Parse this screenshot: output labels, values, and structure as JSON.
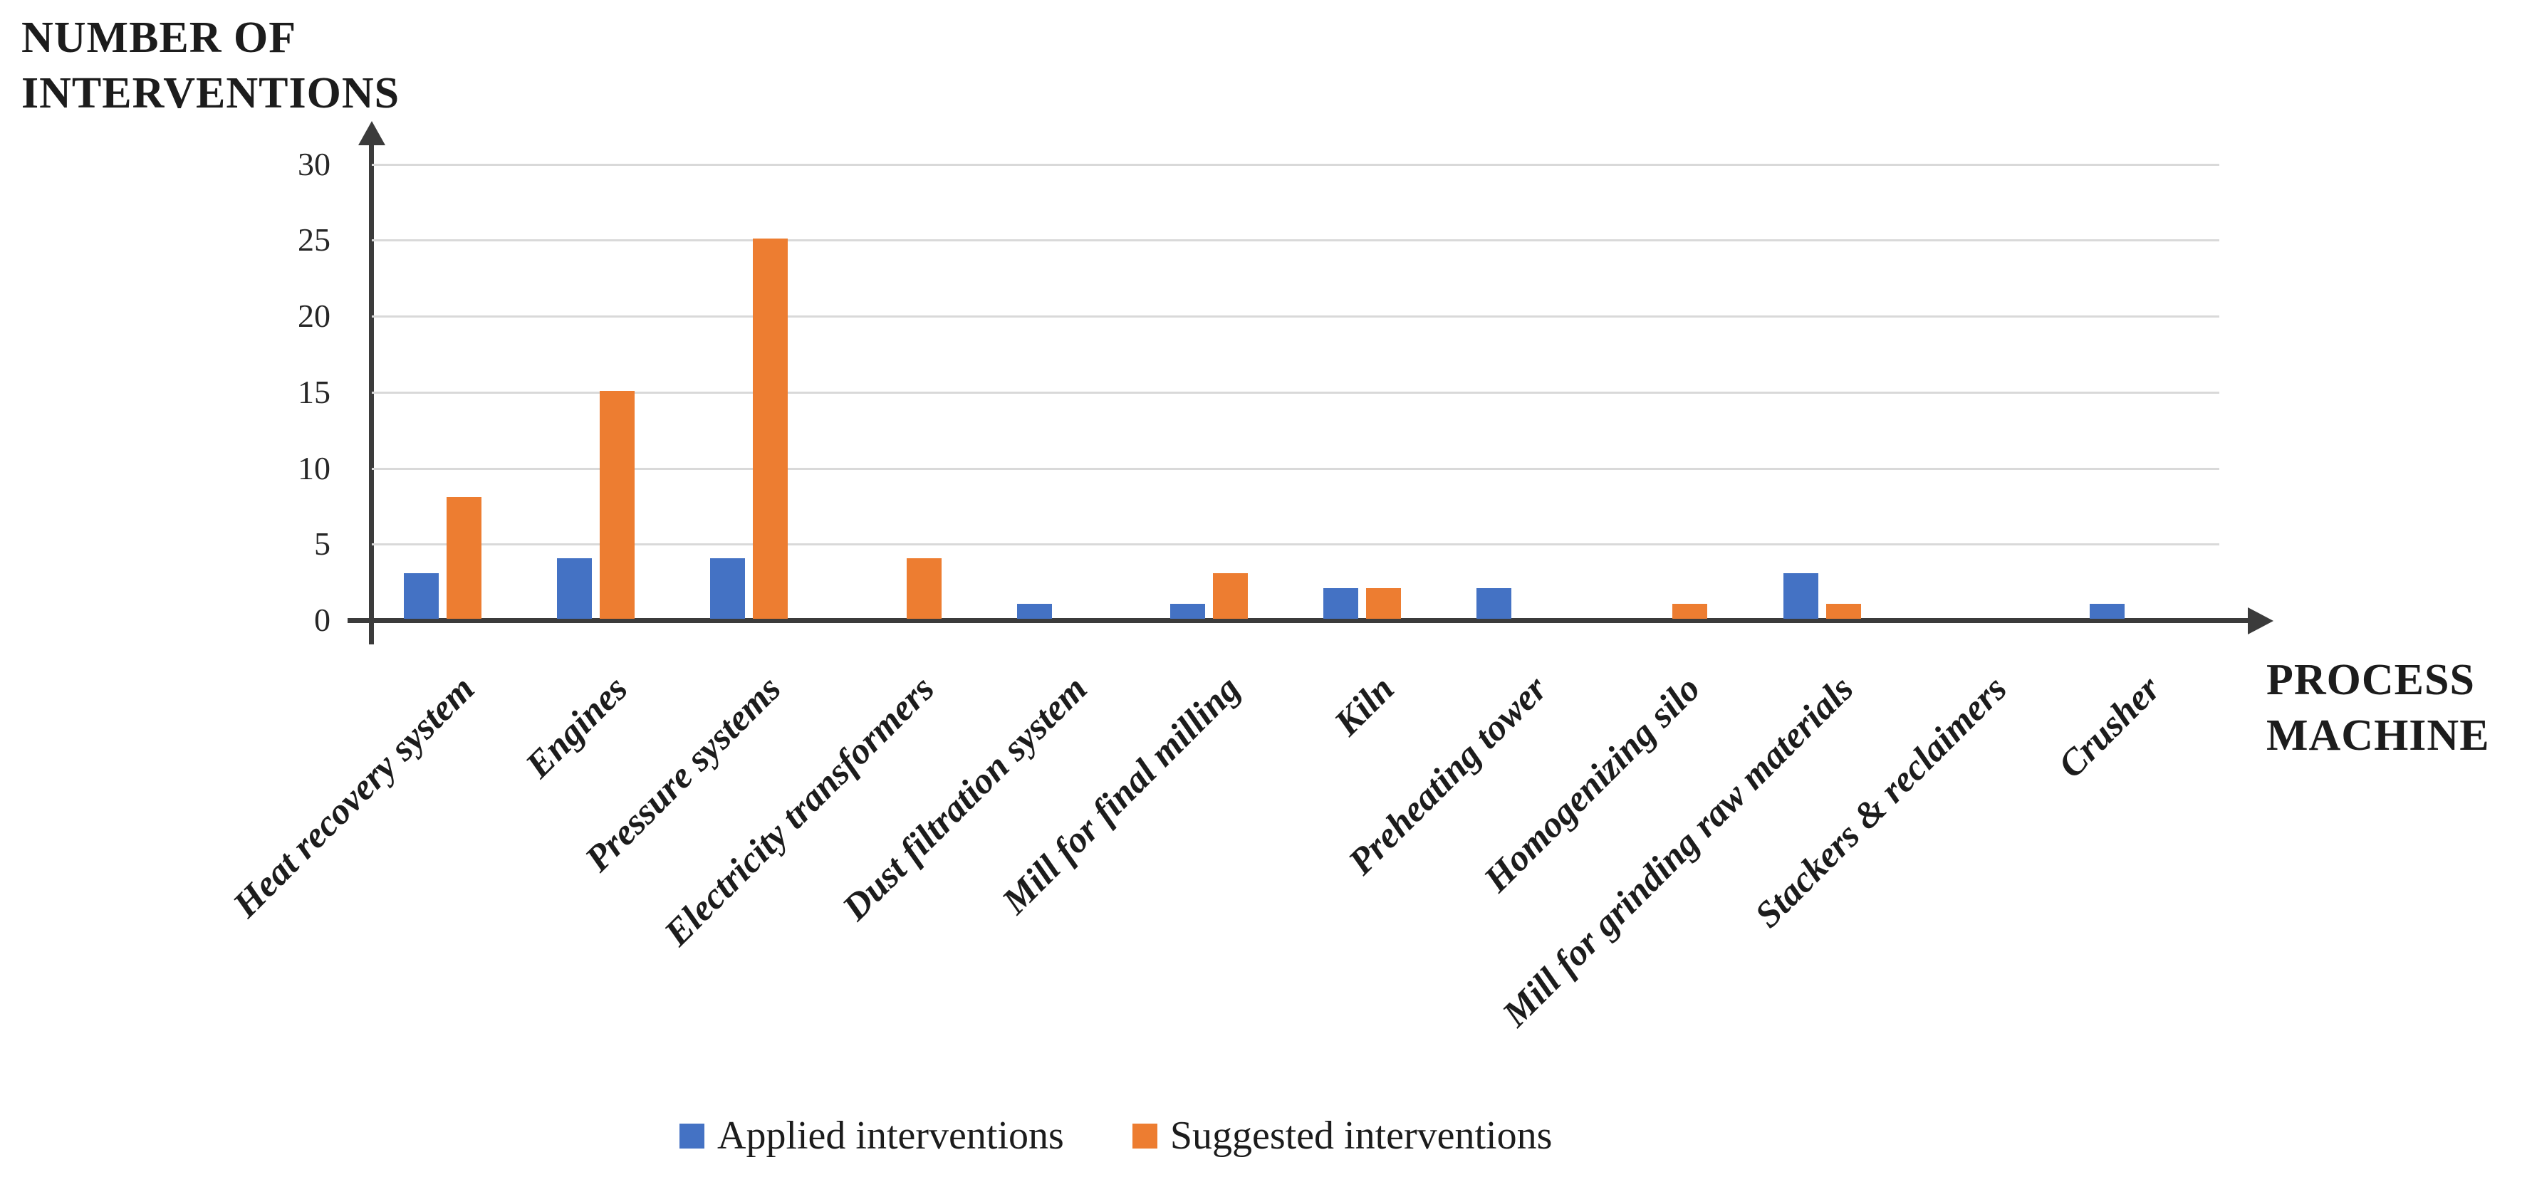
{
  "chart_data": {
    "type": "bar",
    "title": "",
    "y_axis_title": "NUMBER OF INTERVENTIONS",
    "x_axis_title": "PROCESS MACHINE",
    "categories": [
      "Heat recovery system",
      "Engines",
      "Pressure systems",
      "Electricity transformers",
      "Dust filtration system",
      "Mill for final milling",
      "Kiln",
      "Preheating tower",
      "Homogenizing silo",
      "Mill for grinding raw materials",
      "Stackers & reclaimers",
      "Crusher"
    ],
    "series": [
      {
        "name": "Applied interventions",
        "color": "#4472C4",
        "values": [
          3,
          4,
          4,
          0,
          1,
          1,
          2,
          2,
          0,
          3,
          0,
          1
        ]
      },
      {
        "name": "Suggested interventions",
        "color": "#ED7D31",
        "values": [
          8,
          15,
          25,
          4,
          0,
          3,
          2,
          0,
          1,
          1,
          0,
          0
        ]
      }
    ],
    "y_ticks": [
      0,
      5,
      10,
      15,
      20,
      25,
      30
    ],
    "ylim": [
      0,
      32
    ],
    "grid": true,
    "legend_position": "bottom",
    "axis_color": "#3B3B3B",
    "gridline_color": "#D9D9D9",
    "background_color": "#FFFFFF"
  }
}
